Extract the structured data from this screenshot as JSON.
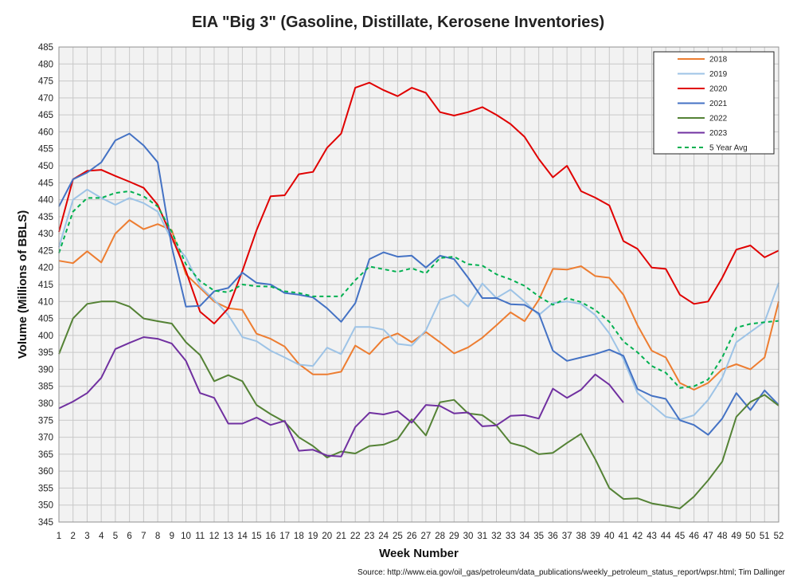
{
  "chart_data": {
    "type": "line",
    "title": "EIA \"Big 3\" (Gasoline, Distillate, Kerosene Inventories)",
    "xlabel": "Week Number",
    "ylabel": "Volume (Millions of BBLS)",
    "source": "Source: http://www.eia.gov/oil_gas/petroleum/data_publications/weekly_petroleum_status_report/wpsr.html; Tim Dallinger",
    "xlim": [
      1,
      52
    ],
    "ylim": [
      345,
      485
    ],
    "ytick_step": 5,
    "grid": true,
    "legend_position": "top-right",
    "x": [
      1,
      2,
      3,
      4,
      5,
      6,
      7,
      8,
      9,
      10,
      11,
      12,
      13,
      14,
      15,
      16,
      17,
      18,
      19,
      20,
      21,
      22,
      23,
      24,
      25,
      26,
      27,
      28,
      29,
      30,
      31,
      32,
      33,
      34,
      35,
      36,
      37,
      38,
      39,
      40,
      41,
      42,
      43,
      44,
      45,
      46,
      47,
      48,
      49,
      50,
      51,
      52
    ],
    "series": [
      {
        "name": "2018",
        "color": "#ED7D31",
        "dash": "",
        "values": [
          422,
          421.3,
          424.8,
          421.5,
          430,
          434,
          431.3,
          432.8,
          431,
          418,
          414,
          410,
          408,
          407.5,
          400.5,
          399,
          396.7,
          391.6,
          388.5,
          388.5,
          389.3,
          397,
          394.5,
          399,
          400.6,
          398,
          401,
          398,
          394.7,
          396.5,
          399.3,
          403,
          406.8,
          404.2,
          410.5,
          419.6,
          419.4,
          420.4,
          417.5,
          417,
          412,
          403,
          395.5,
          393.5,
          386,
          384,
          386,
          390,
          391.5,
          390,
          393.5,
          410
        ]
      },
      {
        "name": "2019",
        "color": "#9DC3E6",
        "dash": "",
        "values": [
          426,
          440,
          443,
          440.5,
          438.5,
          440.5,
          439,
          436.5,
          428,
          423,
          414.5,
          410.5,
          406,
          399.5,
          398.3,
          395.5,
          393.5,
          391.4,
          391,
          396.4,
          394.5,
          402.5,
          402.5,
          401.7,
          397.5,
          397,
          401.5,
          410.5,
          412,
          408.5,
          415.3,
          411,
          413.5,
          410,
          406,
          409.5,
          410,
          409.3,
          406,
          400.6,
          393,
          383,
          379.5,
          376,
          375.2,
          376.5,
          381,
          387.5,
          398,
          401,
          404,
          415.5
        ]
      },
      {
        "name": "2020",
        "color": "#E00000",
        "dash": "",
        "values": [
          430.5,
          446,
          448.5,
          448.8,
          447,
          445.3,
          443.5,
          438.5,
          429,
          419,
          407,
          403.5,
          408,
          419,
          431,
          441,
          441.3,
          447.5,
          448.2,
          455.3,
          459.5,
          473,
          474.5,
          472.3,
          470.5,
          473,
          471.5,
          465.8,
          464.8,
          465.8,
          467.3,
          465,
          462.3,
          458.5,
          452,
          446.6,
          450,
          442.5,
          440.6,
          438.3,
          427.8,
          425.5,
          420,
          419.6,
          412,
          409.3,
          410,
          417,
          425.3,
          426.5,
          423,
          425
        ]
      },
      {
        "name": "2021",
        "color": "#4472C4",
        "dash": "",
        "values": [
          438,
          446,
          448,
          451,
          457.5,
          459.5,
          456,
          451,
          426,
          408.5,
          408.7,
          413,
          414,
          418.5,
          415.5,
          415,
          412.5,
          412,
          411.2,
          408,
          404,
          409.5,
          422.5,
          424.5,
          423.2,
          423.5,
          420,
          423.5,
          422.5,
          417,
          411,
          411,
          409.2,
          409,
          406.5,
          395.5,
          392.5,
          393.5,
          394.5,
          395.8,
          394,
          384.2,
          382.2,
          381.3,
          375,
          373.6,
          370.7,
          375.5,
          383,
          378,
          383.8,
          379.5
        ]
      },
      {
        "name": "2022",
        "color": "#548235",
        "dash": "",
        "values": [
          394.5,
          405,
          409.3,
          410,
          410,
          408.5,
          405,
          404.2,
          403.5,
          398,
          394.2,
          386.5,
          388.3,
          386.5,
          379.5,
          376.8,
          374.5,
          370,
          367.4,
          364,
          365.8,
          365.2,
          367.4,
          367.8,
          369.4,
          375.3,
          370.5,
          380.3,
          381,
          377,
          376.5,
          373.5,
          368.3,
          367.2,
          365,
          365.4,
          368.3,
          371,
          363.5,
          355,
          351.8,
          352,
          350.5,
          349.8,
          349,
          352.5,
          357.3,
          362.8,
          376,
          380.4,
          382.5,
          379.3
        ]
      },
      {
        "name": "2023",
        "color": "#7030A0",
        "dash": "",
        "values": [
          378.5,
          380.5,
          383,
          387.5,
          396,
          397.8,
          399.5,
          399,
          397.6,
          392.5,
          383,
          381.6,
          374,
          374,
          375.8,
          373.6,
          374.8,
          366,
          366.3,
          364.6,
          364.3,
          373,
          377.2,
          376.7,
          377.7,
          374.3,
          379.5,
          379.2,
          377,
          377.3,
          373.2,
          373.5,
          376.3,
          376.5,
          375.5,
          384.3,
          381.6,
          384,
          388.5,
          385.5,
          380.2,
          null,
          null,
          null,
          null,
          null,
          null,
          null,
          null,
          null,
          null,
          null
        ]
      },
      {
        "name": "5 Year Avg",
        "color": "#00B050",
        "dash": "5,4",
        "values": [
          424.3,
          436.5,
          440.5,
          440.5,
          442,
          442.5,
          441,
          438,
          430.5,
          421,
          416,
          413.2,
          412.7,
          415,
          414.5,
          414.4,
          413,
          412.5,
          411.5,
          411.5,
          411.5,
          416.3,
          420.3,
          419.5,
          418.7,
          419.8,
          418.3,
          422.8,
          423.2,
          421,
          420.6,
          418,
          416.5,
          414.6,
          411.5,
          409,
          411,
          409.8,
          407.5,
          404,
          398.2,
          395,
          391,
          389,
          384.5,
          385,
          387,
          393.5,
          402.3,
          403.4,
          403.9,
          404.3
        ]
      }
    ]
  }
}
